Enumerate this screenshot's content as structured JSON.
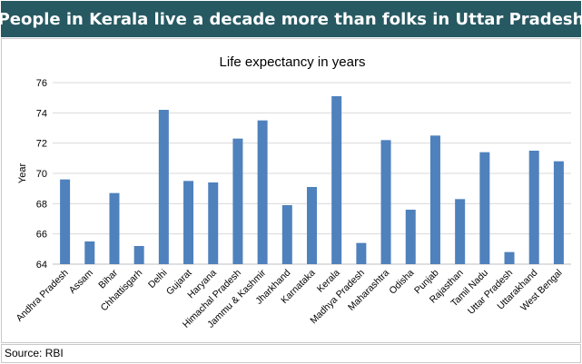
{
  "header": {
    "title": "People in Kerala live a decade more than folks in Uttar Pradesh"
  },
  "footer": {
    "source": "Source: RBI"
  },
  "colors": {
    "banner": "#275962",
    "bar": "#4f81bd",
    "grid": "#d9d9d9",
    "axis": "#bfbfbf",
    "text": "#000000"
  },
  "chart_data": {
    "type": "bar",
    "title": "Life expectancy in years",
    "xlabel": "",
    "ylabel": "Year",
    "ylim": [
      64,
      76
    ],
    "yticks": [
      64,
      66,
      68,
      70,
      72,
      74,
      76
    ],
    "grid": true,
    "legend": "none",
    "categories": [
      "Andhra Pradesh",
      "Assam",
      "Bihar",
      "Chhattisgarh",
      "Delhi",
      "Gujarat",
      "Haryana",
      "Himachal Pradesh",
      "Jammu & Kashmir",
      "Jharkhand",
      "Karnataka",
      "Kerala",
      "Madhya Pradesh",
      "Maharashtra",
      "Odisha",
      "Punjab",
      "Rajasthan",
      "Tamil Nadu",
      "Uttar Pradesh",
      "Uttarakhand",
      "West Bengal"
    ],
    "values": [
      69.6,
      65.5,
      68.7,
      65.2,
      74.2,
      69.5,
      69.4,
      72.3,
      73.5,
      67.9,
      69.1,
      75.1,
      65.4,
      72.2,
      67.6,
      72.5,
      68.3,
      71.4,
      64.8,
      71.5,
      70.8
    ]
  }
}
